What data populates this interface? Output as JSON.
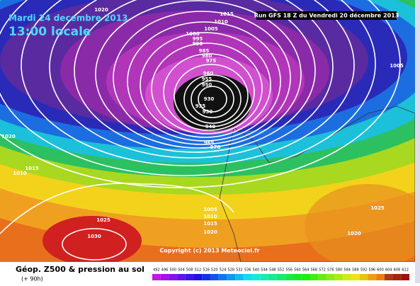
{
  "header": {
    "date": "Mardi 24 decembre 2013",
    "time": "13:00 locale",
    "run": "Run GFS 18 Z du Vendredi 20 décembre 2013"
  },
  "copyright": "Copyright (c) 2013 Meteociel.fr",
  "footer": {
    "title": "Géop. Z500 & pression au sol",
    "lead": "(+ 90h)"
  },
  "isobar_labels": [
    "1020",
    "1015",
    "1010",
    "1005",
    "1000",
    "995",
    "990",
    "985",
    "980",
    "975",
    "960",
    "955",
    "950",
    "930",
    "935",
    "930",
    "940",
    "965",
    "970",
    "1005",
    "1020",
    "1015",
    "1010",
    "1025",
    "1030",
    "1005",
    "1010",
    "1015",
    "1020",
    "1025",
    "1020"
  ],
  "scale": [
    "492",
    "496",
    "500",
    "504",
    "508",
    "512",
    "516",
    "520",
    "524",
    "528",
    "532",
    "536",
    "540",
    "544",
    "548",
    "552",
    "556",
    "560",
    "564",
    "568",
    "572",
    "576",
    "580",
    "584",
    "588",
    "592",
    "596",
    "600",
    "604",
    "608",
    "612"
  ]
}
